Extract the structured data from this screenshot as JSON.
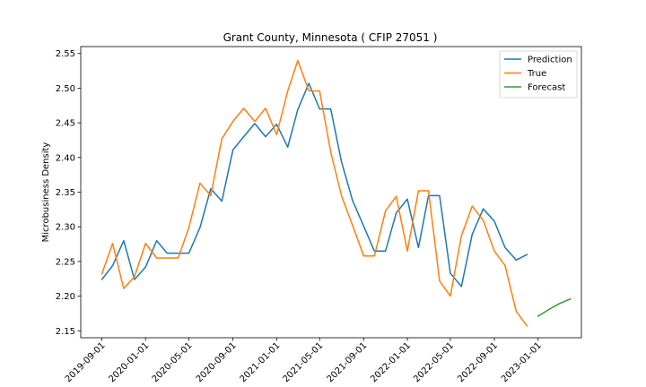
{
  "chart_data": {
    "type": "line",
    "title": "Grant County, Minnesota ( CFIP 27051 )",
    "xlabel": "",
    "ylabel": "Microbusiness Density",
    "ylim": [
      2.14,
      2.56
    ],
    "xlim": [
      "2019-07-04",
      "2023-05-02"
    ],
    "yticks": [
      2.15,
      2.2,
      2.25,
      2.3,
      2.35,
      2.4,
      2.45,
      2.5,
      2.55
    ],
    "ytick_labels": [
      "2.15",
      "2.20",
      "2.25",
      "2.30",
      "2.35",
      "2.40",
      "2.45",
      "2.50",
      "2.55"
    ],
    "xticks": [
      "2019-09-01",
      "2020-01-01",
      "2020-05-01",
      "2020-09-01",
      "2021-01-01",
      "2021-05-01",
      "2021-09-01",
      "2022-01-01",
      "2022-05-01",
      "2022-09-01",
      "2023-01-01"
    ],
    "grid": false,
    "legend": "top-right",
    "series": [
      {
        "name": "Prediction",
        "color": "#1f77b4",
        "x": [
          "2019-09-01",
          "2019-10-01",
          "2019-11-01",
          "2019-12-01",
          "2020-01-01",
          "2020-02-01",
          "2020-03-01",
          "2020-04-01",
          "2020-05-01",
          "2020-06-01",
          "2020-07-01",
          "2020-08-01",
          "2020-09-01",
          "2020-10-01",
          "2020-11-01",
          "2020-12-01",
          "2021-01-01",
          "2021-02-01",
          "2021-03-01",
          "2021-04-01",
          "2021-05-01",
          "2021-06-01",
          "2021-07-01",
          "2021-08-01",
          "2021-09-01",
          "2021-10-01",
          "2021-11-01",
          "2021-12-01",
          "2022-01-01",
          "2022-02-01",
          "2022-03-01",
          "2022-04-01",
          "2022-05-01",
          "2022-06-01",
          "2022-07-01",
          "2022-08-01",
          "2022-09-01",
          "2022-10-01",
          "2022-11-01",
          "2022-12-01"
        ],
        "y": [
          2.224,
          2.244,
          2.28,
          2.224,
          2.242,
          2.28,
          2.262,
          2.262,
          2.262,
          2.299,
          2.355,
          2.337,
          2.411,
          2.43,
          2.449,
          2.43,
          2.448,
          2.415,
          2.469,
          2.507,
          2.47,
          2.47,
          2.394,
          2.338,
          2.301,
          2.265,
          2.265,
          2.32,
          2.34,
          2.27,
          2.345,
          2.345,
          2.233,
          2.214,
          2.289,
          2.326,
          2.308,
          2.27,
          2.252,
          2.26
        ]
      },
      {
        "name": "True",
        "color": "#ff7f0e",
        "x": [
          "2019-09-01",
          "2019-10-01",
          "2019-11-01",
          "2019-12-01",
          "2020-01-01",
          "2020-02-01",
          "2020-03-01",
          "2020-04-01",
          "2020-05-01",
          "2020-06-01",
          "2020-07-01",
          "2020-08-01",
          "2020-09-01",
          "2020-10-01",
          "2020-11-01",
          "2020-12-01",
          "2021-01-01",
          "2021-02-01",
          "2021-03-01",
          "2021-04-01",
          "2021-05-01",
          "2021-06-01",
          "2021-07-01",
          "2021-08-01",
          "2021-09-01",
          "2021-10-01",
          "2021-11-01",
          "2021-12-01",
          "2022-01-01",
          "2022-02-01",
          "2022-03-01",
          "2022-04-01",
          "2022-05-01",
          "2022-06-01",
          "2022-07-01",
          "2022-08-01",
          "2022-09-01",
          "2022-10-01",
          "2022-11-01",
          "2022-12-01"
        ],
        "y": [
          2.232,
          2.276,
          2.211,
          2.228,
          2.276,
          2.255,
          2.255,
          2.255,
          2.299,
          2.363,
          2.345,
          2.427,
          2.452,
          2.471,
          2.452,
          2.471,
          2.433,
          2.496,
          2.54,
          2.496,
          2.496,
          2.408,
          2.345,
          2.302,
          2.258,
          2.258,
          2.323,
          2.344,
          2.265,
          2.352,
          2.352,
          2.222,
          2.2,
          2.287,
          2.33,
          2.309,
          2.265,
          2.244,
          2.178,
          2.157
        ]
      },
      {
        "name": "Forecast",
        "color": "#2ca02c",
        "x": [
          "2023-01-01",
          "2023-02-01",
          "2023-03-01",
          "2023-04-01"
        ],
        "y": [
          2.171,
          2.181,
          2.189,
          2.196
        ]
      }
    ]
  }
}
